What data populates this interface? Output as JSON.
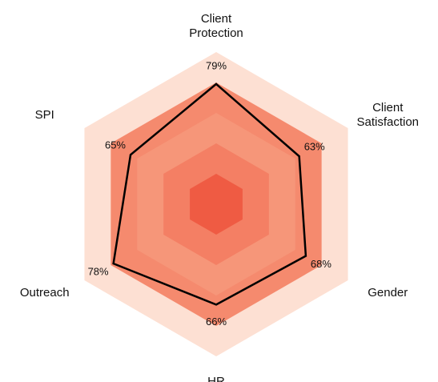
{
  "chart_data": {
    "type": "radar",
    "categories": [
      "Client Protection",
      "Client Satisfaction",
      "Gender",
      "HR",
      "Outreach",
      "SPI"
    ],
    "values": [
      79,
      63,
      68,
      66,
      78,
      65
    ],
    "value_labels": [
      "79%",
      "63%",
      "68%",
      "66%",
      "78%",
      "65%"
    ],
    "color": "#000000",
    "ylim": [
      0,
      100
    ],
    "rings": [
      100,
      80,
      60,
      40,
      20
    ],
    "ring_colors": [
      "#fde0d3",
      "#f58a6e",
      "#f69679",
      "#f47f64",
      "#ef5b43"
    ]
  }
}
